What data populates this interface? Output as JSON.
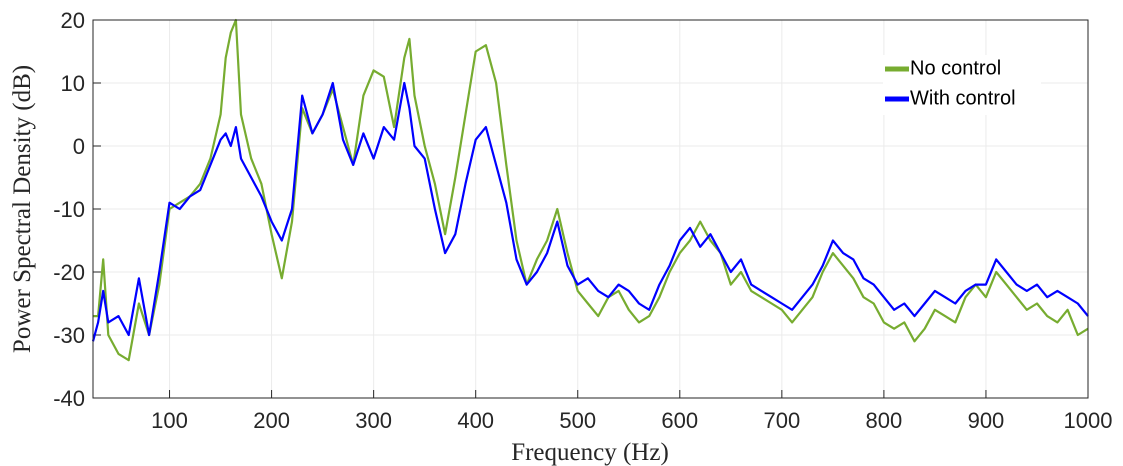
{
  "chart_data": {
    "type": "line",
    "xlabel": "Frequency (Hz)",
    "ylabel": "Power Spectral Density (dB)",
    "x": [
      25,
      30,
      35,
      40,
      50,
      60,
      70,
      80,
      90,
      100,
      110,
      120,
      130,
      140,
      150,
      155,
      160,
      165,
      170,
      180,
      190,
      200,
      210,
      220,
      230,
      240,
      250,
      260,
      270,
      280,
      290,
      300,
      310,
      320,
      330,
      335,
      340,
      350,
      360,
      370,
      380,
      390,
      400,
      410,
      420,
      430,
      440,
      450,
      460,
      470,
      480,
      490,
      500,
      510,
      520,
      530,
      540,
      550,
      560,
      570,
      580,
      590,
      600,
      610,
      620,
      630,
      640,
      650,
      660,
      670,
      680,
      690,
      700,
      710,
      720,
      730,
      740,
      750,
      760,
      770,
      780,
      790,
      800,
      810,
      820,
      830,
      840,
      850,
      860,
      870,
      880,
      890,
      900,
      910,
      920,
      930,
      940,
      950,
      960,
      970,
      980,
      990,
      1000
    ],
    "series": [
      {
        "name": "No control",
        "color": "#77ac30",
        "values": [
          -27,
          -27,
          -18,
          -30,
          -33,
          -34,
          -25,
          -30,
          -22,
          -10,
          -9,
          -8,
          -6,
          -2,
          5,
          14,
          18,
          20,
          5,
          -2,
          -6,
          -14,
          -21,
          -12,
          6,
          2,
          5,
          9,
          3,
          -3,
          8,
          12,
          11,
          3,
          14,
          17,
          8,
          0,
          -6,
          -14,
          -5,
          5,
          15,
          16,
          10,
          -3,
          -15,
          -22,
          -18,
          -15,
          -10,
          -17,
          -23,
          -25,
          -27,
          -24,
          -23,
          -26,
          -28,
          -27,
          -24,
          -20,
          -17,
          -15,
          -12,
          -15,
          -17,
          -22,
          -20,
          -23,
          -24,
          -25,
          -26,
          -28,
          -26,
          -24,
          -20,
          -17,
          -19,
          -21,
          -24,
          -25,
          -28,
          -29,
          -28,
          -31,
          -29,
          -26,
          -27,
          -28,
          -24,
          -22,
          -24,
          -20,
          -22,
          -24,
          -26,
          -25,
          -27,
          -28,
          -26,
          -30,
          -29
        ]
      },
      {
        "name": "With control",
        "color": "#0000ff",
        "values": [
          -31,
          -28,
          -23,
          -28,
          -27,
          -30,
          -21,
          -30,
          -20,
          -9,
          -10,
          -8,
          -7,
          -3,
          1,
          2,
          0,
          3,
          -2,
          -5,
          -8,
          -12,
          -15,
          -10,
          8,
          2,
          5,
          10,
          1,
          -3,
          2,
          -2,
          3,
          1,
          10,
          6,
          0,
          -2,
          -10,
          -17,
          -14,
          -6,
          1,
          3,
          -3,
          -9,
          -18,
          -22,
          -20,
          -17,
          -12,
          -19,
          -22,
          -21,
          -23,
          -24,
          -22,
          -23,
          -25,
          -26,
          -22,
          -19,
          -15,
          -13,
          -16,
          -14,
          -17,
          -20,
          -18,
          -22,
          -23,
          -24,
          -25,
          -26,
          -24,
          -22,
          -19,
          -15,
          -17,
          -18,
          -21,
          -22,
          -24,
          -26,
          -25,
          -27,
          -25,
          -23,
          -24,
          -25,
          -23,
          -22,
          -22,
          -18,
          -20,
          -22,
          -23,
          -22,
          -24,
          -23,
          -24,
          -25,
          -27
        ]
      }
    ],
    "xlim": [
      25,
      1000
    ],
    "xticks": [
      100,
      200,
      300,
      400,
      500,
      600,
      700,
      800,
      900,
      1000
    ],
    "ylim": [
      -40,
      20
    ],
    "yticks": [
      -40,
      -30,
      -20,
      -10,
      0,
      10,
      20
    ],
    "grid": true,
    "legend": "upper right"
  }
}
